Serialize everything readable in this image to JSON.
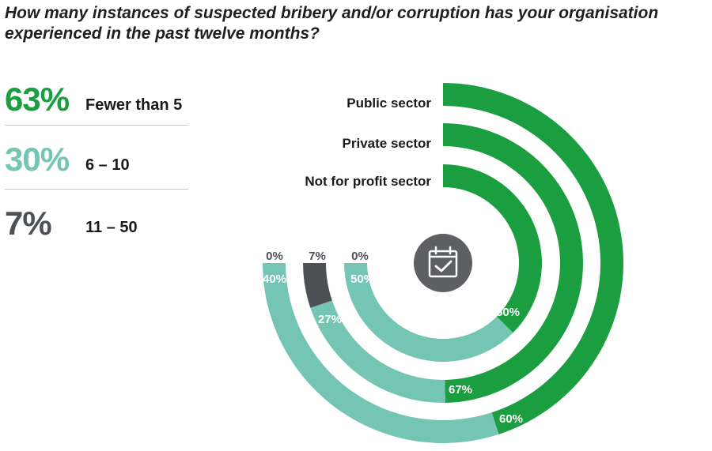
{
  "title": "How many instances of suspected bribery and/or corruption has your organisation experienced in the past twelve months?",
  "legend": [
    {
      "percent": "63%",
      "label": "Fewer than 5",
      "color": "#1a9e3f"
    },
    {
      "percent": "30%",
      "label": "6 – 10",
      "color": "#75c5b5"
    },
    {
      "percent": "7%",
      "label": "11 – 50",
      "color": "#4d5054"
    }
  ],
  "chart_data": {
    "type": "radial-bar",
    "categories_order": [
      "Fewer than 5",
      "6 – 10",
      "11 – 50"
    ],
    "colors": {
      "Fewer than 5": "#1a9e3f",
      "6 – 10": "#75c5b5",
      "11 – 50": "#4d5054"
    },
    "series": [
      {
        "name": "Public sector",
        "values": {
          "Fewer than 5": 60,
          "6 – 10": 40,
          "11 – 50": 0
        },
        "labels": {
          "Fewer than 5": "60%",
          "6 – 10": "40%",
          "11 – 50": "0%"
        }
      },
      {
        "name": "Private sector",
        "values": {
          "Fewer than 5": 67,
          "6 – 10": 27,
          "11 – 50": 7
        },
        "labels": {
          "Fewer than 5": "67%",
          "6 – 10": "27%",
          "11 – 50": "7%"
        }
      },
      {
        "name": "Not for profit sector",
        "values": {
          "Fewer than 5": 50,
          "6 – 10": 50,
          "11 – 50": 0
        },
        "labels": {
          "Fewer than 5": "50%",
          "6 – 10": "50%",
          "11 – 50": "0%"
        }
      }
    ],
    "center_icon": "calendar-check-icon"
  }
}
